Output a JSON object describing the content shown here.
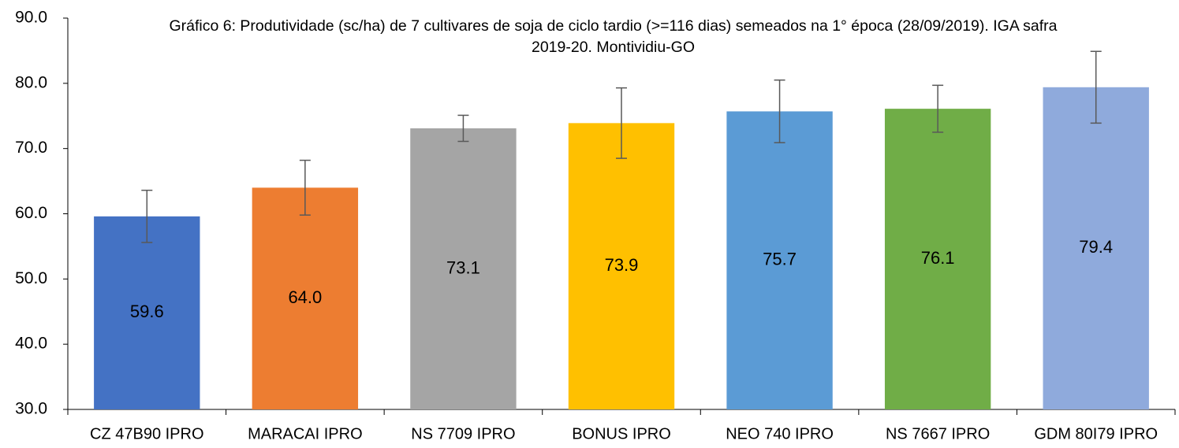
{
  "chart_data": {
    "type": "bar",
    "title": "Gráfico 6: Produtividade (sc/ha) de 7 cultivares de soja de ciclo tardio (>=116 dias) semeados na 1° época (28/09/2019). IGA safra 2019-20. Montividiu-GO",
    "categories": [
      "CZ 47B90 IPRO",
      "MARACAI IPRO",
      "NS 7709 IPRO",
      "BONUS IPRO",
      "NEO 740 IPRO",
      "NS 7667 IPRO",
      "GDM 80I79 IPRO"
    ],
    "values": [
      59.6,
      64.0,
      73.1,
      73.9,
      75.7,
      76.1,
      79.4
    ],
    "value_labels": [
      "59.6",
      "64.0",
      "73.1",
      "73.9",
      "75.7",
      "76.1",
      "79.4"
    ],
    "errors": [
      4.0,
      4.2,
      2.0,
      5.4,
      4.8,
      3.6,
      5.5
    ],
    "colors": [
      "#4472c4",
      "#ed7d31",
      "#a5a5a5",
      "#ffc000",
      "#5b9bd5",
      "#70ad47",
      "#8faadc"
    ],
    "ylim": [
      30,
      90
    ],
    "yticks": [
      {
        "value": 30,
        "label": "30.0"
      },
      {
        "value": 40,
        "label": "40.0"
      },
      {
        "value": 50,
        "label": "50.0"
      },
      {
        "value": 60,
        "label": "60.0"
      },
      {
        "value": 70,
        "label": "70.0"
      },
      {
        "value": 80,
        "label": "80.0"
      },
      {
        "value": 90,
        "label": "90.0"
      }
    ],
    "grid": false
  }
}
